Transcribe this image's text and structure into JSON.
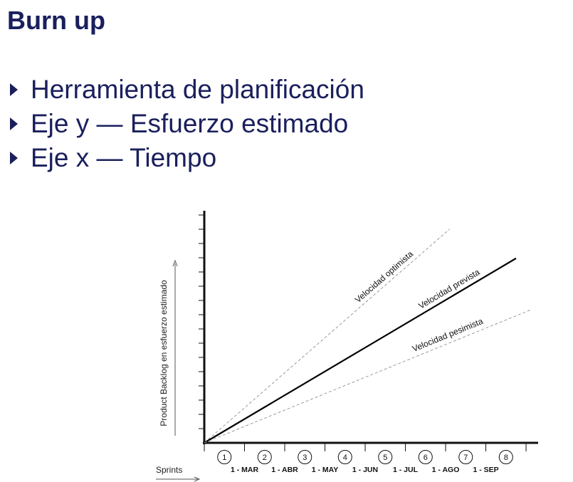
{
  "slide": {
    "title": "Burn up",
    "bullets": [
      "Herramienta de planificación",
      "Eje y — Esfuerzo estimado",
      "Eje x — Tiempo"
    ]
  },
  "chart_data": {
    "type": "line",
    "ylabel": "Product Backlog en esfuerzo estimado",
    "xlabel": "Sprints",
    "sprints": [
      "1",
      "2",
      "3",
      "4",
      "5",
      "6",
      "7",
      "8"
    ],
    "dates": [
      "1 - MAR",
      "1 - ABR",
      "1 - MAY",
      "1 - JUN",
      "1 - JUL",
      "1 - AGO",
      "1 - SEP"
    ],
    "xlim": [
      0,
      8.3
    ],
    "ylim": [
      0,
      1
    ],
    "series": [
      {
        "name": "Velocidad optimista",
        "style": "dashed",
        "color": "#9a9a9a",
        "x": [
          0,
          6.1
        ],
        "y": [
          0,
          0.95
        ]
      },
      {
        "name": "Velocidad prevista",
        "style": "solid",
        "color": "#000000",
        "x": [
          0,
          7.75
        ],
        "y": [
          0,
          0.82
        ]
      },
      {
        "name": "Velocidad pesimista",
        "style": "dashed",
        "color": "#9a9a9a",
        "x": [
          0,
          8.1
        ],
        "y": [
          0,
          0.59
        ]
      }
    ]
  }
}
